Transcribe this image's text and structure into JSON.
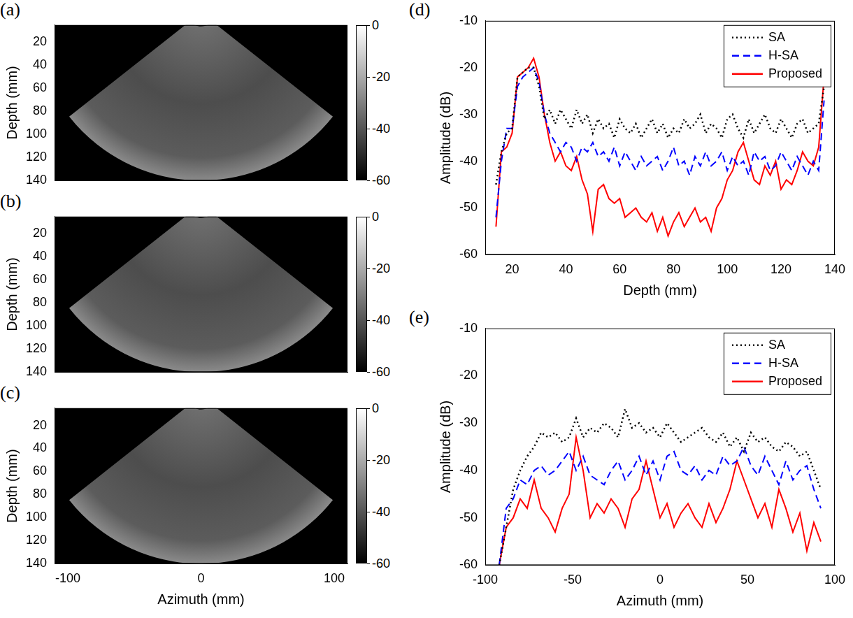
{
  "chart_data": [
    {
      "panel": "(a)",
      "type": "image",
      "y_label": "Depth (mm)",
      "xlim": [
        -110,
        110
      ],
      "ylim": [
        5,
        140
      ],
      "yticks": [
        20,
        40,
        60,
        80,
        100,
        120,
        140
      ],
      "tick_labels": "y",
      "grid": false,
      "colorbar": {
        "range": [
          -60,
          0
        ],
        "ticks": [
          0,
          -20,
          -40,
          -60
        ]
      }
    },
    {
      "panel": "(b)",
      "type": "image",
      "y_label": "Depth (mm)",
      "xlim": [
        -110,
        110
      ],
      "ylim": [
        5,
        140
      ],
      "yticks": [
        20,
        40,
        60,
        80,
        100,
        120,
        140
      ],
      "tick_labels": "y",
      "grid": false,
      "colorbar": {
        "range": [
          -60,
          0
        ],
        "ticks": [
          0,
          -20,
          -40,
          -60
        ]
      }
    },
    {
      "panel": "(c)",
      "type": "image",
      "x_label": "Azimuth (mm)",
      "y_label": "Depth (mm)",
      "xlim": [
        -110,
        110
      ],
      "ylim": [
        5,
        140
      ],
      "xticks": [
        -100,
        0,
        100
      ],
      "yticks": [
        20,
        40,
        60,
        80,
        100,
        120,
        140
      ],
      "grid": false,
      "colorbar": {
        "range": [
          -60,
          0
        ],
        "ticks": [
          0,
          -20,
          -40,
          -60
        ]
      }
    },
    {
      "panel": "(d)",
      "type": "line",
      "x_label": "Depth (mm)",
      "y_label": "Amplitude (dB)",
      "xlim": [
        10,
        140
      ],
      "xticks": [
        20,
        40,
        60,
        80,
        100,
        120,
        140
      ],
      "ylim": [
        -60,
        -10
      ],
      "yticks": [
        -60,
        -50,
        -40,
        -30,
        -20,
        -10
      ],
      "legend": "upper right",
      "grid": false,
      "x": [
        14,
        16,
        18,
        20,
        22,
        24,
        26,
        28,
        30,
        32,
        34,
        36,
        38,
        40,
        42,
        44,
        46,
        48,
        50,
        52,
        54,
        56,
        58,
        60,
        62,
        64,
        66,
        68,
        70,
        72,
        74,
        76,
        78,
        80,
        82,
        84,
        86,
        88,
        90,
        92,
        94,
        96,
        98,
        100,
        102,
        104,
        106,
        108,
        110,
        112,
        114,
        116,
        118,
        120,
        122,
        124,
        126,
        128,
        130,
        132,
        134,
        136
      ],
      "series": [
        {
          "name": "SA",
          "color": "#000000",
          "line_style": "dotted",
          "values": [
            -45,
            -38,
            -34,
            -33,
            -22,
            -21,
            -20,
            -20,
            -24,
            -31,
            -29,
            -32,
            -29,
            -31,
            -33,
            -29,
            -32,
            -30,
            -34,
            -31,
            -33,
            -32,
            -35,
            -31,
            -33,
            -34,
            -32,
            -35,
            -33,
            -31,
            -34,
            -32,
            -35,
            -33,
            -34,
            -31,
            -33,
            -32,
            -30,
            -34,
            -32,
            -33,
            -35,
            -31,
            -30,
            -33,
            -35,
            -31,
            -34,
            -32,
            -30,
            -33,
            -34,
            -31,
            -33,
            -35,
            -32,
            -31,
            -34,
            -33,
            -32,
            -24
          ]
        },
        {
          "name": "H-SA",
          "color": "#0000ff",
          "line_style": "dashed",
          "values": [
            -52,
            -40,
            -33,
            -33,
            -24,
            -22,
            -21,
            -20,
            -23,
            -30,
            -34,
            -36,
            -38,
            -36,
            -37,
            -40,
            -37,
            -38,
            -36,
            -39,
            -38,
            -40,
            -37,
            -41,
            -38,
            -40,
            -42,
            -39,
            -41,
            -40,
            -39,
            -42,
            -40,
            -37,
            -41,
            -40,
            -43,
            -39,
            -41,
            -38,
            -41,
            -40,
            -38,
            -42,
            -39,
            -41,
            -40,
            -43,
            -38,
            -40,
            -39,
            -42,
            -41,
            -38,
            -40,
            -42,
            -39,
            -41,
            -43,
            -40,
            -42,
            -27
          ]
        },
        {
          "name": "Proposed",
          "color": "#ff0000",
          "line_style": "solid",
          "values": [
            -54,
            -38,
            -37,
            -34,
            -22,
            -21,
            -20,
            -18,
            -22,
            -30,
            -36,
            -40,
            -38,
            -41,
            -42,
            -39,
            -44,
            -47,
            -55,
            -46,
            -45,
            -48,
            -49,
            -48,
            -52,
            -51,
            -50,
            -52,
            -53,
            -51,
            -55,
            -52,
            -56,
            -53,
            -51,
            -54,
            -52,
            -50,
            -53,
            -52,
            -55,
            -50,
            -48,
            -44,
            -42,
            -38,
            -36,
            -40,
            -44,
            -45,
            -41,
            -43,
            -40,
            -46,
            -44,
            -45,
            -42,
            -38,
            -40,
            -41,
            -37,
            -22
          ]
        }
      ]
    },
    {
      "panel": "(e)",
      "type": "line",
      "x_label": "Azimuth (mm)",
      "y_label": "Amplitude (dB)",
      "xlim": [
        -100,
        100
      ],
      "xticks": [
        -100,
        -50,
        0,
        50,
        100
      ],
      "ylim": [
        -60,
        -10
      ],
      "yticks": [
        -60,
        -50,
        -40,
        -30,
        -20,
        -10
      ],
      "legend": "upper right",
      "grid": false,
      "x": [
        -92,
        -88,
        -84,
        -80,
        -76,
        -72,
        -68,
        -64,
        -60,
        -56,
        -52,
        -48,
        -44,
        -40,
        -36,
        -32,
        -28,
        -24,
        -20,
        -16,
        -12,
        -8,
        -4,
        0,
        4,
        8,
        12,
        16,
        20,
        24,
        28,
        32,
        36,
        40,
        44,
        48,
        52,
        56,
        60,
        64,
        68,
        72,
        76,
        80,
        84,
        88,
        92
      ],
      "series": [
        {
          "name": "SA",
          "color": "#000000",
          "line_style": "dotted",
          "values": [
            -60,
            -52,
            -44,
            -40,
            -37,
            -35,
            -32,
            -33,
            -32,
            -34,
            -33,
            -29,
            -33,
            -31,
            -32,
            -30,
            -31,
            -33,
            -27,
            -31,
            -30,
            -32,
            -31,
            -33,
            -30,
            -32,
            -34,
            -33,
            -32,
            -31,
            -33,
            -34,
            -32,
            -35,
            -33,
            -36,
            -32,
            -34,
            -33,
            -35,
            -36,
            -34,
            -35,
            -37,
            -36,
            -40,
            -44
          ]
        },
        {
          "name": "H-SA",
          "color": "#0000ff",
          "line_style": "dashed",
          "values": [
            -60,
            -48,
            -46,
            -42,
            -43,
            -40,
            -39,
            -41,
            -40,
            -38,
            -36,
            -40,
            -37,
            -41,
            -42,
            -43,
            -40,
            -38,
            -42,
            -40,
            -37,
            -41,
            -38,
            -42,
            -37,
            -36,
            -40,
            -41,
            -39,
            -42,
            -40,
            -41,
            -37,
            -39,
            -38,
            -35,
            -39,
            -41,
            -37,
            -40,
            -43,
            -38,
            -42,
            -40,
            -39,
            -44,
            -48
          ]
        },
        {
          "name": "Proposed",
          "color": "#ff0000",
          "line_style": "solid",
          "values": [
            -60,
            -52,
            -50,
            -46,
            -48,
            -42,
            -48,
            -50,
            -53,
            -48,
            -45,
            -33,
            -40,
            -50,
            -47,
            -49,
            -46,
            -48,
            -52,
            -46,
            -44,
            -38,
            -44,
            -50,
            -47,
            -52,
            -49,
            -47,
            -50,
            -52,
            -47,
            -51,
            -48,
            -44,
            -38,
            -42,
            -46,
            -50,
            -47,
            -52,
            -44,
            -48,
            -53,
            -49,
            -57,
            -51,
            -55
          ]
        }
      ]
    }
  ]
}
